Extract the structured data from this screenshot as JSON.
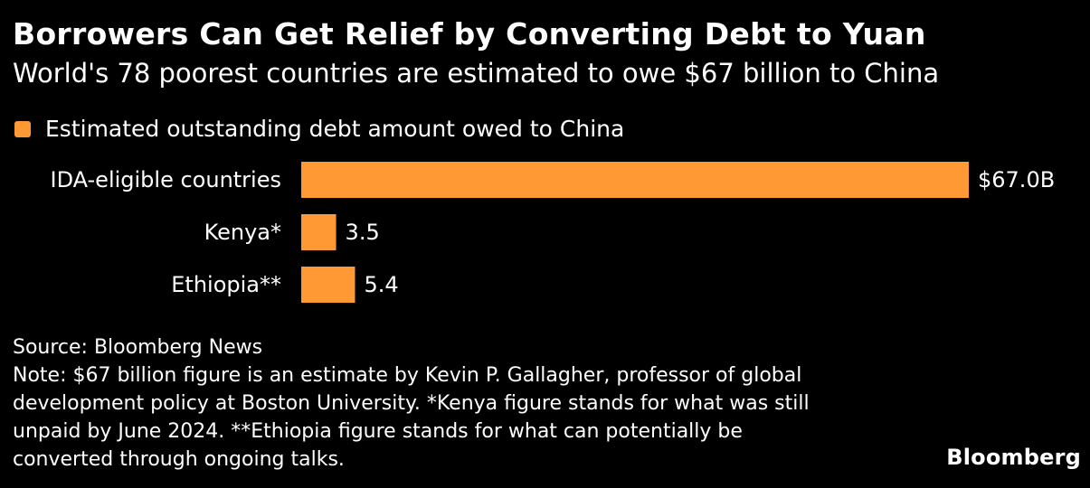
{
  "title": "Borrowers Can Get Relief by Converting Debt to Yuan",
  "subtitle": "World's 78 poorest countries are estimated to owe $67 billion to China",
  "legend_label": "Estimated outstanding debt amount owed to China",
  "colors": {
    "background": "#000000",
    "bar": "#ff9933",
    "text": "#ffffff"
  },
  "chart_data": {
    "type": "bar",
    "orientation": "horizontal",
    "categories": [
      "IDA-eligible countries",
      "Kenya*",
      "Ethiopia**"
    ],
    "series": [
      {
        "name": "Estimated outstanding debt amount owed to China",
        "values": [
          67.0,
          3.5,
          5.4
        ]
      }
    ],
    "data_labels": [
      "$67.0B",
      "3.5",
      "5.4"
    ],
    "xlim": [
      0,
      67
    ],
    "grid": false,
    "legend_position": "top-left"
  },
  "source": "Source: Bloomberg News",
  "note_lines": [
    "Note: $67 billion figure is an estimate by Kevin P. Gallagher, professor of global",
    "development policy at Boston University. *Kenya figure stands for what was still",
    "unpaid by June 2024. **Ethiopia figure stands for what can potentially be",
    "converted through ongoing talks."
  ],
  "brand": "Bloomberg"
}
